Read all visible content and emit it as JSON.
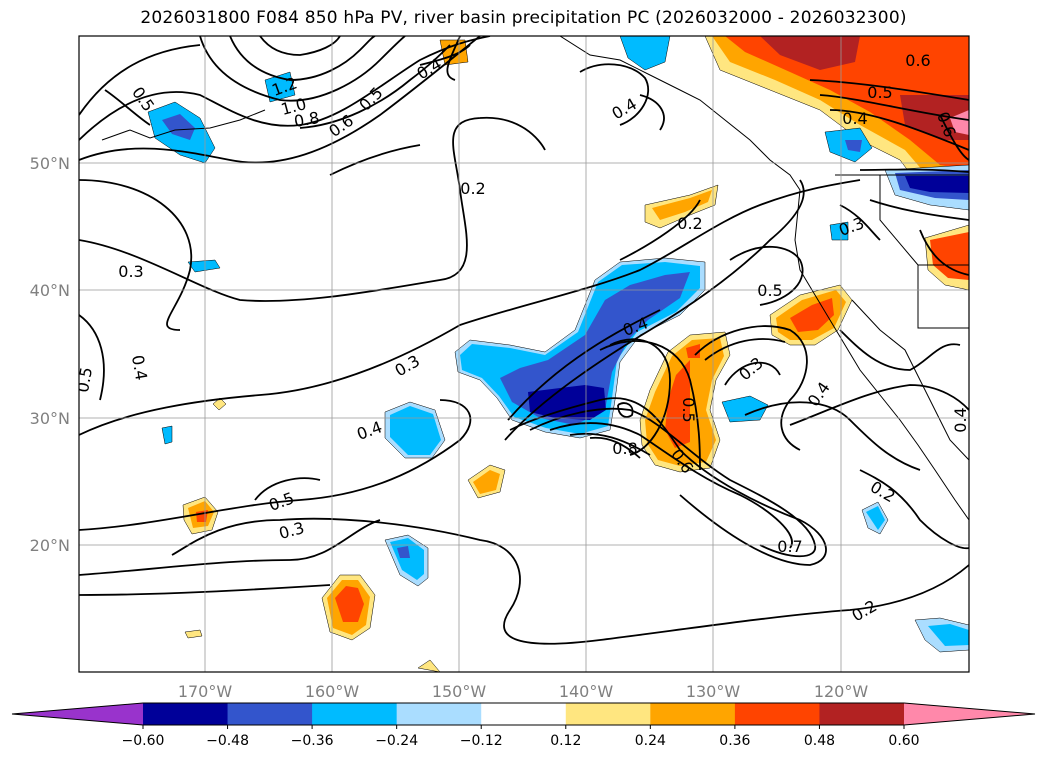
{
  "title": "2026031800 F084 850 hPa PV, river basin precipitation PC (2026032000 - 2026032300)",
  "lon_labels": [
    "170°W",
    "160°W",
    "150°W",
    "140°W",
    "130°W",
    "120°W"
  ],
  "lat_labels": [
    "50°N",
    "40°N",
    "30°N",
    "20°N"
  ],
  "colorbar": {
    "ticks": [
      "−0.60",
      "−0.48",
      "−0.36",
      "−0.24",
      "−0.12",
      "0.12",
      "0.24",
      "0.36",
      "0.48",
      "0.60"
    ],
    "colors": [
      "#9933cc",
      "#000099",
      "#3355cc",
      "#00bbff",
      "#aaddff",
      "#ffffff",
      "#ffe680",
      "#ffa500",
      "#ff4400",
      "#b22222",
      "#ff88aa"
    ]
  },
  "contour_labels": [
    {
      "text": "0.5"
    },
    {
      "text": "1.2"
    },
    {
      "text": "1.0"
    },
    {
      "text": "0.8"
    },
    {
      "text": "0.6"
    },
    {
      "text": "0.5"
    },
    {
      "text": "0.4"
    },
    {
      "text": "0.4"
    },
    {
      "text": "0.2"
    },
    {
      "text": "0.2"
    },
    {
      "text": "0.6"
    },
    {
      "text": "0.5"
    },
    {
      "text": "0.4"
    },
    {
      "text": "0.6"
    },
    {
      "text": "0.3"
    },
    {
      "text": "0.3"
    },
    {
      "text": "0.4"
    },
    {
      "text": "0.5"
    },
    {
      "text": "0.3"
    },
    {
      "text": "0.4"
    },
    {
      "text": "0.5"
    },
    {
      "text": "0.3"
    },
    {
      "text": "0.4"
    },
    {
      "text": "0.8"
    },
    {
      "text": "0.6"
    },
    {
      "text": "0.5"
    },
    {
      "text": "0.4"
    },
    {
      "text": "0.2"
    },
    {
      "text": "0.7"
    },
    {
      "text": "0.2"
    },
    {
      "text": "0.5"
    },
    {
      "text": "0.3"
    },
    {
      "text": "0.4"
    }
  ]
}
